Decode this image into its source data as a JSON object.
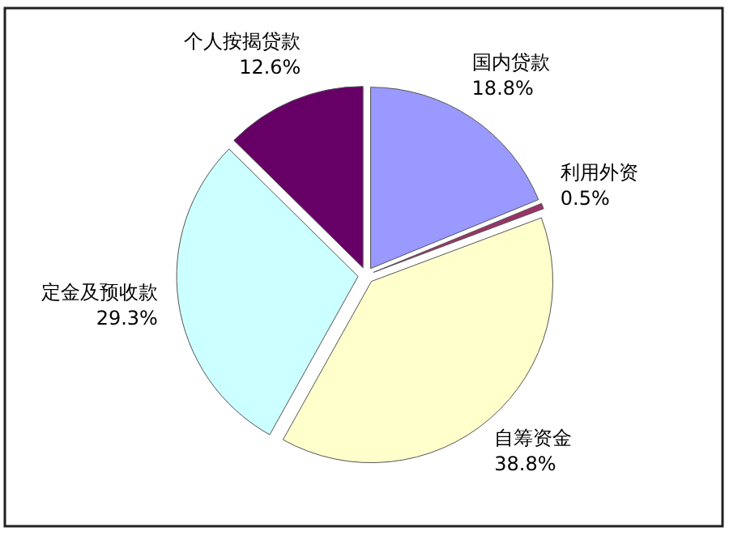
{
  "chart_data": {
    "type": "pie",
    "categories": [
      "国内贷款",
      "利用外资",
      "自筹资金",
      "定金及预收款",
      "个人按揭贷款"
    ],
    "values": [
      18.8,
      0.5,
      38.8,
      29.3,
      12.6
    ],
    "colors": [
      "#9999ff",
      "#993366",
      "#ffffcc",
      "#ccffff",
      "#660066"
    ],
    "value_labels": [
      "18.8%",
      "0.5%",
      "38.8%",
      "29.3%",
      "12.6%"
    ]
  }
}
